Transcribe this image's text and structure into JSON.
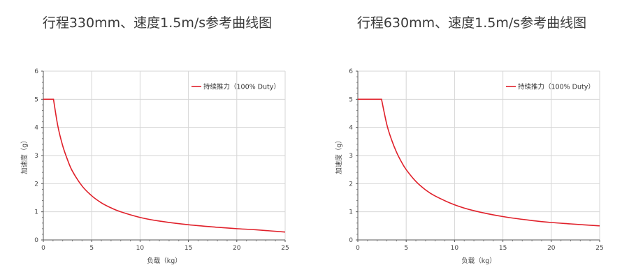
{
  "chart_data": [
    {
      "type": "line",
      "title": "行程330mm、速度1.5m/s参考曲线图",
      "xlabel": "负载（kg）",
      "ylabel": "加速度（g）",
      "xlim": [
        0,
        25
      ],
      "ylim": [
        0,
        6
      ],
      "xticks": [
        0,
        5,
        10,
        15,
        20,
        25
      ],
      "yticks": [
        0,
        1,
        2,
        3,
        4,
        5,
        6
      ],
      "grid": true,
      "legend_position": "top-right",
      "series": [
        {
          "name": "持续推力（100% Duty）",
          "color": "#e0202a",
          "x": [
            0,
            1.05,
            1.5,
            2,
            2.5,
            3,
            4,
            5,
            6,
            7,
            8,
            10,
            12,
            15,
            18,
            20,
            22,
            25
          ],
          "y": [
            5.0,
            5.0,
            4.05,
            3.35,
            2.85,
            2.45,
            1.92,
            1.57,
            1.32,
            1.14,
            1.0,
            0.8,
            0.67,
            0.54,
            0.45,
            0.4,
            0.36,
            0.28
          ]
        }
      ]
    },
    {
      "type": "line",
      "title": "行程630mm、速度1.5m/s参考曲线图",
      "xlabel": "负载（kg）",
      "ylabel": "加速度（g）",
      "xlim": [
        0,
        25
      ],
      "ylim": [
        0,
        6
      ],
      "xticks": [
        0,
        5,
        10,
        15,
        20,
        25
      ],
      "yticks": [
        0,
        1,
        2,
        3,
        4,
        5,
        6
      ],
      "grid": true,
      "legend_position": "top-right",
      "series": [
        {
          "name": "持续推力（100% Duty）",
          "color": "#e0202a",
          "x": [
            0,
            2.45,
            3,
            3.5,
            4,
            4.5,
            5,
            6,
            7,
            8,
            10,
            12,
            15,
            18,
            20,
            22,
            25
          ],
          "y": [
            5.0,
            5.0,
            4.1,
            3.55,
            3.12,
            2.78,
            2.5,
            2.08,
            1.78,
            1.56,
            1.25,
            1.04,
            0.83,
            0.69,
            0.62,
            0.57,
            0.5
          ]
        }
      ]
    }
  ]
}
